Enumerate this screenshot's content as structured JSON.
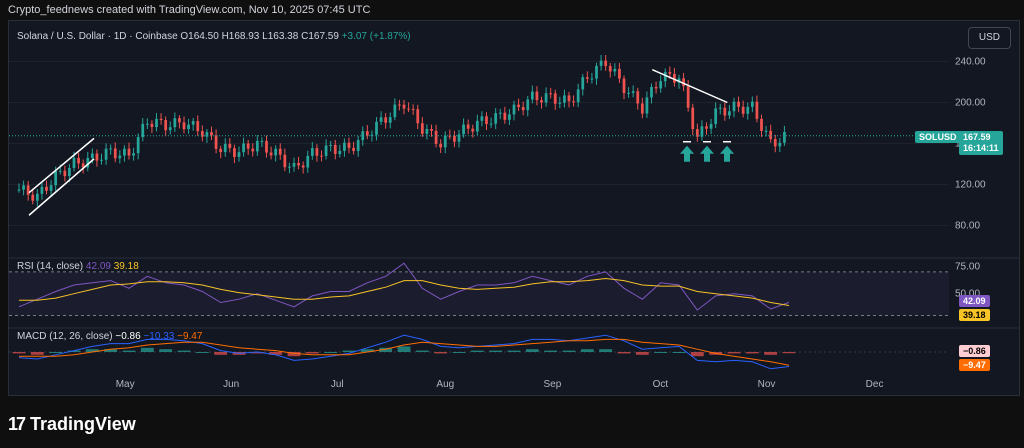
{
  "header": {
    "caption": "Crypto_feednews created with TradingView.com, Nov 10, 2025 07:45 UTC"
  },
  "legend": {
    "symbol": "Solana / U.S. Dollar · 1D · Coinbase",
    "open": "O164.50",
    "high": "H168.93",
    "low": "L163.38",
    "close": "C167.59",
    "change": "+3.07 (+1.87%)"
  },
  "currency_button": "USD",
  "price_badge": {
    "ticker": "SOLUSD",
    "price": "167.59",
    "countdown": "16:14:11"
  },
  "rsi_label": {
    "name": "RSI (14, close)",
    "rsi": "42.09",
    "ma": "39.18"
  },
  "rsi_badges": {
    "rsi": "42.09",
    "ma": "39.18"
  },
  "macd_label": {
    "name": "MACD (12, 26, close)",
    "hist": "−0.86",
    "macd": "−10.33",
    "signal": "−9.47"
  },
  "macd_badges": {
    "hist": "−0.86",
    "signal": "−9.47"
  },
  "footer": {
    "brand": "TradingView"
  },
  "colors": {
    "up": "#26a69a",
    "down": "#ef5350",
    "rsi": "#7e57c2",
    "rsi_ma": "#f7c325",
    "macd": "#2962ff",
    "signal": "#ff6d00",
    "annotation": "#ffffff"
  },
  "chart_data": [
    {
      "type": "candlestick",
      "x": [
        "Apr 10",
        "Apr 15",
        "Apr 20",
        "Apr 25",
        "Apr 30",
        "May 5",
        "May 10",
        "May 15",
        "May 20",
        "May 25",
        "May 30",
        "Jun 5",
        "Jun 10",
        "Jun 15",
        "Jun 20",
        "Jun 25",
        "Jun 30",
        "Jul 5",
        "Jul 10",
        "Jul 15",
        "Jul 20",
        "Jul 25",
        "Jul 30",
        "Aug 5",
        "Aug 10",
        "Aug 15",
        "Aug 20",
        "Aug 25",
        "Aug 30",
        "Sep 5",
        "Sep 10",
        "Sep 15",
        "Sep 20",
        "Sep 25",
        "Sep 30",
        "Oct 5",
        "Oct 10",
        "Oct 15",
        "Oct 20",
        "Oct 25",
        "Oct 30",
        "Nov 5",
        "Nov 10"
      ],
      "close": [
        115,
        108,
        128,
        140,
        145,
        152,
        148,
        182,
        178,
        180,
        172,
        155,
        152,
        160,
        150,
        135,
        150,
        155,
        155,
        170,
        185,
        200,
        175,
        160,
        170,
        180,
        185,
        192,
        205,
        205,
        200,
        225,
        240,
        215,
        195,
        225,
        225,
        165,
        190,
        195,
        195,
        160,
        167.59
      ],
      "x_ticks": [
        "May",
        "Jun",
        "Jul",
        "Aug",
        "Sep",
        "Oct",
        "Nov",
        "Dec"
      ],
      "y_ticks": [
        80,
        120,
        160,
        200,
        240
      ],
      "y_tick_labels": [
        "80.00",
        "120.00",
        "160.00",
        "200.00",
        "240.00"
      ],
      "ylim": [
        60,
        260
      ],
      "last_price": 167.59,
      "annotations": [
        "rising channel lines (Apr–May)",
        "descending trendline (Oct)",
        "three green up arrows (Oct)"
      ]
    },
    {
      "type": "line",
      "name": "RSI (14, close)",
      "series": [
        {
          "name": "RSI",
          "values": [
            38,
            45,
            52,
            58,
            60,
            62,
            55,
            66,
            60,
            58,
            52,
            42,
            45,
            50,
            44,
            38,
            48,
            52,
            52,
            60,
            66,
            78,
            55,
            45,
            52,
            58,
            58,
            60,
            66,
            62,
            58,
            66,
            70,
            55,
            45,
            60,
            58,
            35,
            48,
            50,
            48,
            36,
            42.09
          ]
        },
        {
          "name": "MA",
          "values": [
            44,
            44,
            46,
            50,
            54,
            58,
            59,
            61,
            61,
            60,
            58,
            54,
            51,
            49,
            47,
            45,
            45,
            47,
            48,
            52,
            56,
            62,
            62,
            58,
            55,
            54,
            55,
            56,
            59,
            61,
            61,
            62,
            64,
            62,
            58,
            57,
            57,
            52,
            50,
            48,
            46,
            42,
            39.18
          ]
        }
      ],
      "y_ticks": [
        50,
        75
      ],
      "y_tick_labels": [
        "50.00",
        "75.00"
      ],
      "bands": [
        30,
        70
      ],
      "ylim": [
        25,
        80
      ]
    },
    {
      "type": "bar",
      "name": "MACD (12, 26, close)",
      "histogram": [
        -1,
        -2,
        0,
        1,
        2,
        2,
        1,
        3,
        2,
        1,
        0,
        -2,
        -2,
        -1,
        -2,
        -3,
        -1,
        0,
        1,
        2,
        3,
        4,
        1,
        -1,
        0,
        1,
        1,
        1,
        2,
        1,
        1,
        2,
        2,
        -1,
        -2,
        0,
        0,
        -3,
        -2,
        -1,
        -1,
        -2,
        -0.86
      ],
      "series": [
        {
          "name": "MACD",
          "values": [
            -4,
            -5,
            -2,
            1,
            4,
            6,
            6,
            9,
            9,
            8,
            6,
            1,
            -1,
            0,
            -2,
            -6,
            -5,
            -3,
            -1,
            3,
            7,
            12,
            9,
            4,
            3,
            4,
            5,
            6,
            9,
            9,
            8,
            10,
            12,
            8,
            2,
            3,
            4,
            -6,
            -7,
            -6,
            -7,
            -12,
            -10.33
          ]
        },
        {
          "name": "Signal",
          "values": [
            -3,
            -3,
            -3,
            -2,
            0,
            2,
            3,
            5,
            6,
            7,
            7,
            5,
            3,
            2,
            1,
            -1,
            -2,
            -2,
            -2,
            0,
            2,
            5,
            7,
            6,
            5,
            4,
            4,
            5,
            6,
            7,
            8,
            8,
            9,
            9,
            7,
            6,
            5,
            2,
            -1,
            -3,
            -5,
            -7,
            -9.47
          ]
        }
      ],
      "ylim": [
        -15,
        15
      ]
    }
  ]
}
